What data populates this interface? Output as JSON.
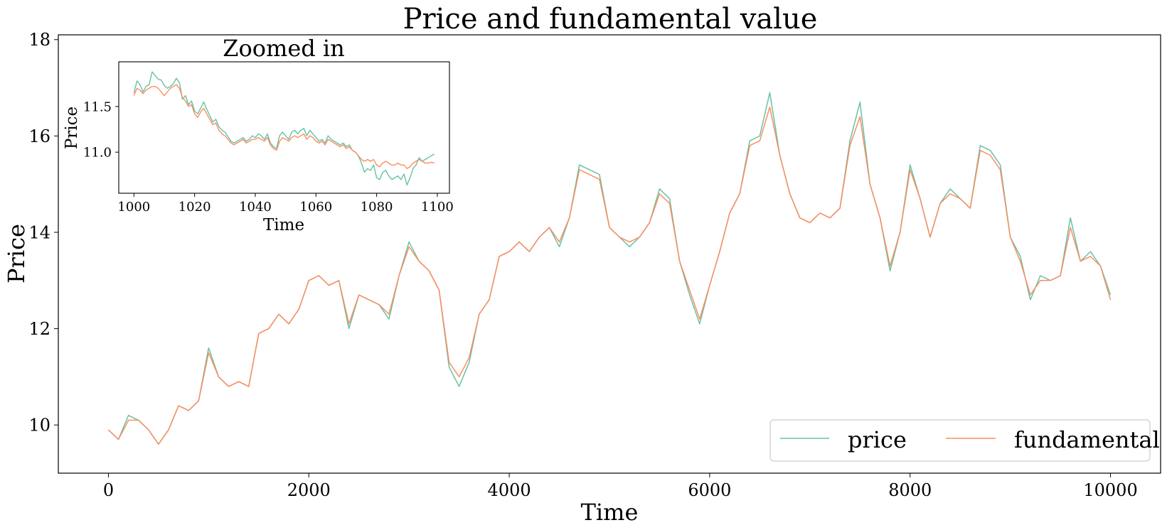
{
  "chart_data": [
    {
      "type": "line",
      "title": "Price and fundamental value",
      "xlabel": "Time",
      "ylabel": "Price",
      "xlim": [
        -500,
        10500
      ],
      "ylim": [
        9.0,
        18.1
      ],
      "xticks": [
        0,
        2000,
        4000,
        6000,
        8000,
        10000
      ],
      "xtick_labels": [
        "0",
        "2000",
        "4000",
        "6000",
        "8000",
        "10000"
      ],
      "yticks": [
        10,
        12,
        14,
        16,
        18
      ],
      "ytick_labels": [
        "10",
        "12",
        "14",
        "16",
        "18"
      ],
      "grid": false,
      "legend": {
        "placement": "lower-right",
        "columns": 2
      },
      "series": [
        {
          "name": "price",
          "color": "#66c2a5",
          "x": [
            0,
            100,
            200,
            300,
            400,
            500,
            600,
            700,
            800,
            900,
            1000,
            1100,
            1200,
            1300,
            1400,
            1500,
            1600,
            1700,
            1800,
            1900,
            2000,
            2100,
            2200,
            2300,
            2400,
            2500,
            2600,
            2700,
            2800,
            2900,
            3000,
            3100,
            3200,
            3300,
            3400,
            3500,
            3600,
            3700,
            3800,
            3900,
            4000,
            4100,
            4200,
            4300,
            4400,
            4500,
            4600,
            4700,
            4800,
            4900,
            5000,
            5100,
            5200,
            5300,
            5400,
            5500,
            5600,
            5700,
            5800,
            5900,
            6000,
            6100,
            6200,
            6300,
            6400,
            6500,
            6600,
            6700,
            6800,
            6900,
            7000,
            7100,
            7200,
            7300,
            7400,
            7500,
            7600,
            7700,
            7800,
            7900,
            8000,
            8100,
            8200,
            8300,
            8400,
            8500,
            8600,
            8700,
            8800,
            8900,
            9000,
            9100,
            9200,
            9300,
            9400,
            9500,
            9600,
            9700,
            9800,
            9900,
            10000
          ],
          "values": [
            9.9,
            9.7,
            10.2,
            10.1,
            9.9,
            9.6,
            9.9,
            10.4,
            10.3,
            10.5,
            11.6,
            11.0,
            10.8,
            10.9,
            10.8,
            11.9,
            12.0,
            12.3,
            12.1,
            12.4,
            13.0,
            13.1,
            12.9,
            13.0,
            12.0,
            12.7,
            12.6,
            12.5,
            12.2,
            13.1,
            13.8,
            13.4,
            13.2,
            12.8,
            11.2,
            10.8,
            11.3,
            12.3,
            12.6,
            13.5,
            13.6,
            13.8,
            13.6,
            13.9,
            14.1,
            13.7,
            14.3,
            15.4,
            15.3,
            15.2,
            14.1,
            13.9,
            13.7,
            13.9,
            14.2,
            14.9,
            14.7,
            13.4,
            12.7,
            12.1,
            12.9,
            13.6,
            14.4,
            14.8,
            15.9,
            16.0,
            16.9,
            15.6,
            14.8,
            14.3,
            14.2,
            14.4,
            14.3,
            14.5,
            15.9,
            16.7,
            15.0,
            14.3,
            13.2,
            14.0,
            15.4,
            14.7,
            13.9,
            14.6,
            14.9,
            14.7,
            14.5,
            15.8,
            15.7,
            15.4,
            13.9,
            13.5,
            12.6,
            13.1,
            13.0,
            13.1,
            14.3,
            13.4,
            13.6,
            13.3,
            12.7
          ]
        },
        {
          "name": "fundamental",
          "color": "#fc8d62",
          "x": [
            0,
            100,
            200,
            300,
            400,
            500,
            600,
            700,
            800,
            900,
            1000,
            1100,
            1200,
            1300,
            1400,
            1500,
            1600,
            1700,
            1800,
            1900,
            2000,
            2100,
            2200,
            2300,
            2400,
            2500,
            2600,
            2700,
            2800,
            2900,
            3000,
            3100,
            3200,
            3300,
            3400,
            3500,
            3600,
            3700,
            3800,
            3900,
            4000,
            4100,
            4200,
            4300,
            4400,
            4500,
            4600,
            4700,
            4800,
            4900,
            5000,
            5100,
            5200,
            5300,
            5400,
            5500,
            5600,
            5700,
            5800,
            5900,
            6000,
            6100,
            6200,
            6300,
            6400,
            6500,
            6600,
            6700,
            6800,
            6900,
            7000,
            7100,
            7200,
            7300,
            7400,
            7500,
            7600,
            7700,
            7800,
            7900,
            8000,
            8100,
            8200,
            8300,
            8400,
            8500,
            8600,
            8700,
            8800,
            8900,
            9000,
            9100,
            9200,
            9300,
            9400,
            9500,
            9600,
            9700,
            9800,
            9900,
            10000
          ],
          "values": [
            9.9,
            9.7,
            10.1,
            10.1,
            9.9,
            9.6,
            9.9,
            10.4,
            10.3,
            10.5,
            11.5,
            11.0,
            10.8,
            10.9,
            10.8,
            11.9,
            12.0,
            12.3,
            12.1,
            12.4,
            13.0,
            13.1,
            12.9,
            13.0,
            12.1,
            12.7,
            12.6,
            12.5,
            12.3,
            13.1,
            13.7,
            13.4,
            13.2,
            12.8,
            11.3,
            11.0,
            11.4,
            12.3,
            12.6,
            13.5,
            13.6,
            13.8,
            13.6,
            13.9,
            14.1,
            13.8,
            14.3,
            15.3,
            15.2,
            15.1,
            14.1,
            13.9,
            13.8,
            13.9,
            14.2,
            14.8,
            14.6,
            13.4,
            12.8,
            12.2,
            12.9,
            13.6,
            14.4,
            14.8,
            15.8,
            15.9,
            16.6,
            15.6,
            14.8,
            14.3,
            14.2,
            14.4,
            14.3,
            14.5,
            15.8,
            16.4,
            15.0,
            14.3,
            13.3,
            14.0,
            15.3,
            14.7,
            13.9,
            14.6,
            14.8,
            14.7,
            14.5,
            15.7,
            15.6,
            15.3,
            13.9,
            13.4,
            12.7,
            13.0,
            13.0,
            13.1,
            14.1,
            13.4,
            13.5,
            13.3,
            12.6
          ]
        }
      ]
    },
    {
      "type": "line",
      "title": "Zoomed in",
      "xlabel": "Time",
      "ylabel": "Price",
      "xlim": [
        995,
        1104
      ],
      "ylim": [
        10.55,
        11.99
      ],
      "xticks": [
        1000,
        1020,
        1040,
        1060,
        1080,
        1100
      ],
      "xtick_labels": [
        "1000",
        "1020",
        "1040",
        "1060",
        "1080",
        "1100"
      ],
      "yticks": [
        11.0,
        11.5
      ],
      "ytick_labels": [
        "11.0",
        "11.5"
      ],
      "grid": false,
      "series": [
        {
          "name": "price",
          "color": "#66c2a5",
          "x": [
            1000,
            1001,
            1002,
            1003,
            1004,
            1005,
            1006,
            1007,
            1008,
            1009,
            1010,
            1011,
            1012,
            1013,
            1014,
            1015,
            1016,
            1017,
            1018,
            1019,
            1020,
            1021,
            1022,
            1023,
            1024,
            1025,
            1026,
            1027,
            1028,
            1029,
            1030,
            1031,
            1032,
            1033,
            1034,
            1035,
            1036,
            1037,
            1038,
            1039,
            1040,
            1041,
            1042,
            1043,
            1044,
            1045,
            1046,
            1047,
            1048,
            1049,
            1050,
            1051,
            1052,
            1053,
            1054,
            1055,
            1056,
            1057,
            1058,
            1059,
            1060,
            1061,
            1062,
            1063,
            1064,
            1065,
            1066,
            1067,
            1068,
            1069,
            1070,
            1071,
            1072,
            1073,
            1074,
            1075,
            1076,
            1077,
            1078,
            1079,
            1080,
            1081,
            1082,
            1083,
            1084,
            1085,
            1086,
            1087,
            1088,
            1089,
            1090,
            1091,
            1092,
            1093,
            1094,
            1095,
            1096,
            1097,
            1098,
            1099
          ],
          "values": [
            11.65,
            11.78,
            11.74,
            11.66,
            11.72,
            11.74,
            11.88,
            11.84,
            11.8,
            11.79,
            11.73,
            11.7,
            11.72,
            11.75,
            11.81,
            11.76,
            11.58,
            11.62,
            11.52,
            11.56,
            11.45,
            11.42,
            11.48,
            11.55,
            11.47,
            11.4,
            11.33,
            11.36,
            11.28,
            11.24,
            11.22,
            11.17,
            11.12,
            11.1,
            11.12,
            11.14,
            11.16,
            11.12,
            11.14,
            11.18,
            11.16,
            11.2,
            11.18,
            11.14,
            11.2,
            11.1,
            11.06,
            11.04,
            11.18,
            11.22,
            11.18,
            11.14,
            11.22,
            11.24,
            11.2,
            11.24,
            11.26,
            11.18,
            11.24,
            11.2,
            11.16,
            11.12,
            11.14,
            11.1,
            11.18,
            11.14,
            11.12,
            11.1,
            11.08,
            11.1,
            11.06,
            11.08,
            11.02,
            11.0,
            10.96,
            10.88,
            10.78,
            10.82,
            10.8,
            10.86,
            10.72,
            10.7,
            10.78,
            10.8,
            10.74,
            10.7,
            10.72,
            10.74,
            10.7,
            10.76,
            10.64,
            10.72,
            10.82,
            10.86,
            10.94,
            10.9,
            10.92,
            10.94,
            10.96,
            10.98
          ]
        },
        {
          "name": "fundamental",
          "color": "#fc8d62",
          "x": [
            1000,
            1001,
            1002,
            1003,
            1004,
            1005,
            1006,
            1007,
            1008,
            1009,
            1010,
            1011,
            1012,
            1013,
            1014,
            1015,
            1016,
            1017,
            1018,
            1019,
            1020,
            1021,
            1022,
            1023,
            1024,
            1025,
            1026,
            1027,
            1028,
            1029,
            1030,
            1031,
            1032,
            1033,
            1034,
            1035,
            1036,
            1037,
            1038,
            1039,
            1040,
            1041,
            1042,
            1043,
            1044,
            1045,
            1046,
            1047,
            1048,
            1049,
            1050,
            1051,
            1052,
            1053,
            1054,
            1055,
            1056,
            1057,
            1058,
            1059,
            1060,
            1061,
            1062,
            1063,
            1064,
            1065,
            1066,
            1067,
            1068,
            1069,
            1070,
            1071,
            1072,
            1073,
            1074,
            1075,
            1076,
            1077,
            1078,
            1079,
            1080,
            1081,
            1082,
            1083,
            1084,
            1085,
            1086,
            1087,
            1088,
            1089,
            1090,
            1091,
            1092,
            1093,
            1094,
            1095,
            1096,
            1097,
            1098,
            1099
          ],
          "values": [
            11.62,
            11.7,
            11.68,
            11.64,
            11.68,
            11.7,
            11.72,
            11.72,
            11.7,
            11.66,
            11.62,
            11.66,
            11.7,
            11.72,
            11.74,
            11.7,
            11.6,
            11.56,
            11.5,
            11.52,
            11.42,
            11.38,
            11.44,
            11.48,
            11.42,
            11.36,
            11.3,
            11.32,
            11.24,
            11.2,
            11.18,
            11.14,
            11.1,
            11.08,
            11.1,
            11.12,
            11.14,
            11.1,
            11.12,
            11.14,
            11.14,
            11.16,
            11.14,
            11.12,
            11.16,
            11.08,
            11.04,
            11.02,
            11.12,
            11.16,
            11.14,
            11.12,
            11.16,
            11.18,
            11.16,
            11.18,
            11.2,
            11.14,
            11.18,
            11.16,
            11.12,
            11.1,
            11.12,
            11.08,
            11.14,
            11.12,
            11.1,
            11.08,
            11.06,
            11.08,
            11.04,
            11.06,
            11.02,
            11.0,
            10.96,
            10.92,
            10.9,
            10.92,
            10.9,
            10.92,
            10.86,
            10.84,
            10.88,
            10.9,
            10.88,
            10.86,
            10.86,
            10.88,
            10.86,
            10.86,
            10.82,
            10.84,
            10.88,
            10.9,
            10.92,
            10.9,
            10.88,
            10.88,
            10.89,
            10.88
          ]
        }
      ]
    }
  ]
}
